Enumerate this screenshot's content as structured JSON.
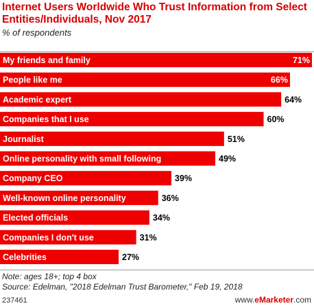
{
  "header": {
    "title": "Internet Users Worldwide Who Trust Information from Select Entities/Individuals, Nov 2017",
    "subtitle": "% of respondents"
  },
  "chart_data": {
    "type": "bar",
    "orientation": "horizontal",
    "categories": [
      "My friends and family",
      "People like me",
      "Academic expert",
      "Companies that I use",
      "Journalist",
      "Online personality with small following",
      "Company CEO",
      "Well-known online personality",
      "Elected officials",
      "Companies I don't use",
      "Celebrities"
    ],
    "values": [
      71,
      66,
      64,
      60,
      51,
      49,
      39,
      36,
      34,
      31,
      27
    ],
    "value_labels": [
      "71%",
      "66%",
      "64%",
      "60%",
      "51%",
      "49%",
      "39%",
      "36%",
      "34%",
      "31%",
      "27%"
    ],
    "xlim": [
      0,
      71
    ],
    "bar_color": "#ee0000",
    "grid": false,
    "legend": "none"
  },
  "notes": {
    "note": "Note: ages 18+; top 4 box",
    "source": "Source: Edelman, \"2018 Edelman Trust Barometer,\" Feb 19, 2018"
  },
  "footer": {
    "chart_id": "237461",
    "brand_prefix": "www.",
    "brand_name": "eMarketer",
    "brand_suffix": ".com"
  }
}
